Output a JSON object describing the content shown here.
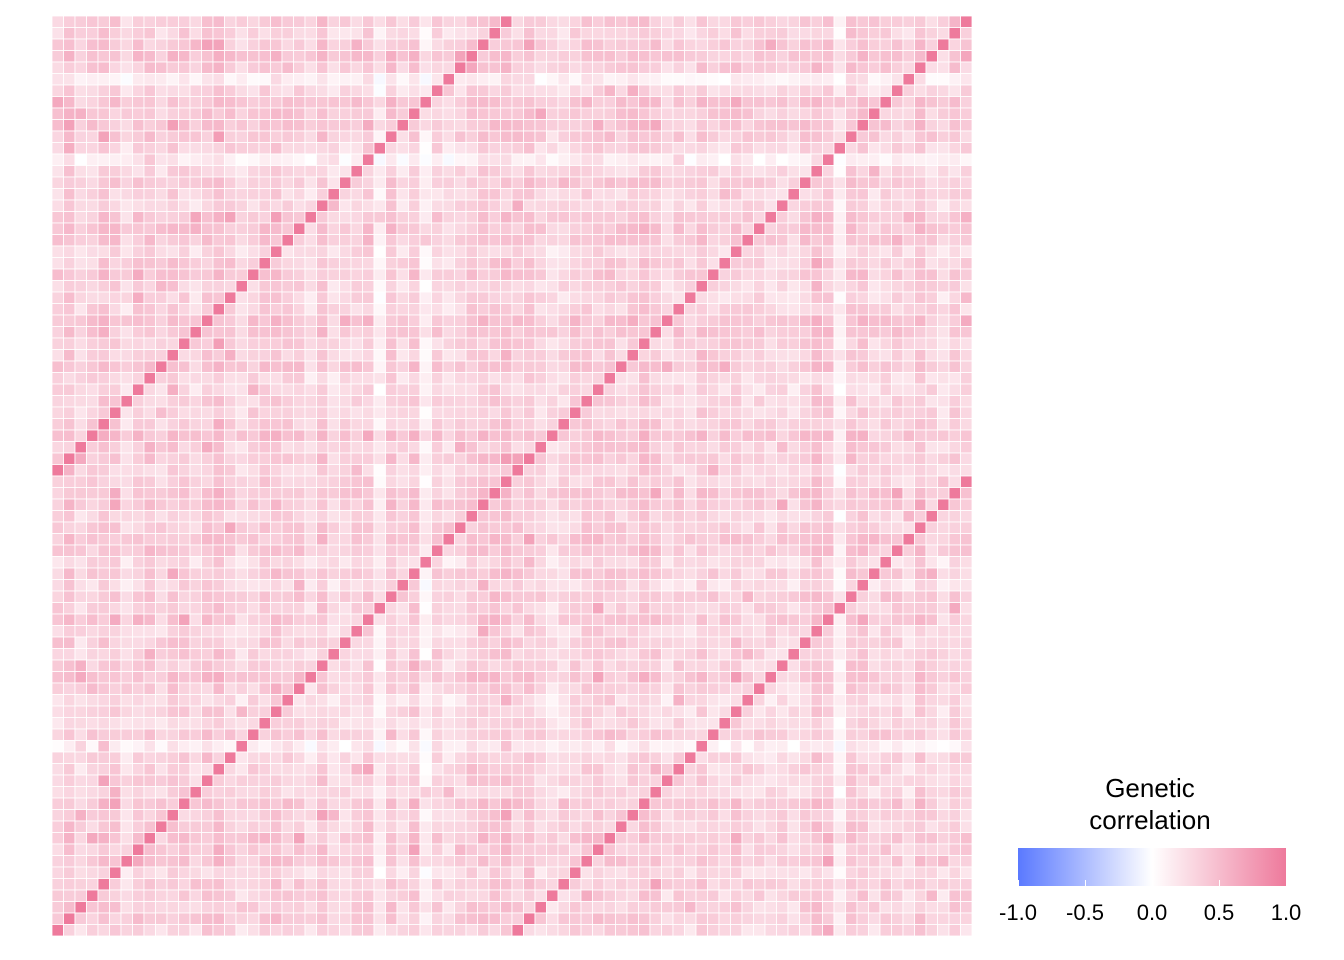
{
  "chart_data": {
    "type": "heatmap",
    "title": "",
    "xlabel": "",
    "ylabel": "",
    "n_rows": 80,
    "n_cols": 80,
    "diagonal_value": 1.0,
    "off_diagonal_typical_range": [
      0.0,
      0.6
    ],
    "off_diagonal_typical_value": 0.35,
    "description_pattern": "correlation matrix with unit diagonal stripes",
    "diagonal_offsets": [
      -40,
      0,
      40
    ],
    "low_rows": [
      5,
      12,
      63
    ],
    "low_cols": [
      28,
      32,
      68
    ],
    "grid": true,
    "grid_color": "#ffffff",
    "colorscale": {
      "low_color": "#5a79ff",
      "mid_color": "#ffffff",
      "high_color": "#ee7a9c",
      "min": -1.0,
      "mid": 0.0,
      "max": 1.0
    },
    "legend": {
      "placement": "bottom-right",
      "title_line1": "Genetic",
      "title_line2": "correlation",
      "ticks": [
        "-1.0",
        "-0.5",
        "0.0",
        "0.5",
        "1.0"
      ],
      "tick_values": [
        -1.0,
        -0.5,
        0.0,
        0.5,
        1.0
      ]
    }
  }
}
